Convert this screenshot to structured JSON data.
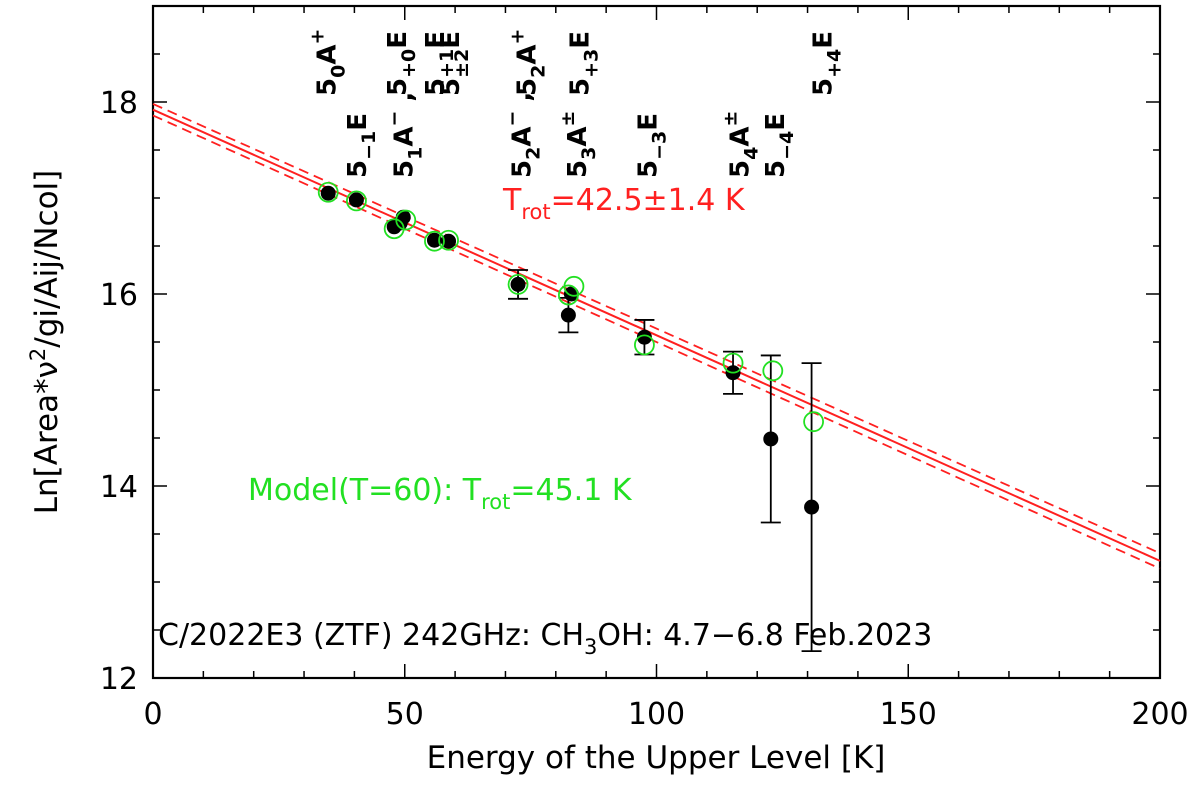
{
  "chart_data": {
    "type": "scatter",
    "title": "C/2022E3 (ZTF) 242GHz: CH3OH: 4.7-6.8 Feb.2023",
    "title_parts": {
      "pre": "C/2022E3 (ZTF) 242GHz: CH",
      "sub": "3",
      "post": "OH: 4.7−6.8 Feb.2023"
    },
    "xlabel": "Energy of the Upper Level [K]",
    "ylabel": "Ln[Area*ν²/gi/Aij/Ncol]",
    "ylabel_parts": {
      "pre": "Ln[Area*ν",
      "sup": "2",
      "post": "/gi/Aij/Ncol]"
    },
    "xlim": [
      0,
      200
    ],
    "ylim": [
      12,
      19
    ],
    "x_ticks": [
      0,
      50,
      100,
      150,
      200
    ],
    "x_tick_labels": [
      "0",
      "50",
      "100",
      "150",
      "200"
    ],
    "y_ticks": [
      12,
      14,
      16,
      18
    ],
    "y_tick_labels": [
      "12",
      "14",
      "16",
      "18"
    ],
    "grid": false,
    "observed": {
      "name": "Observed",
      "color": "#000000",
      "points": [
        {
          "x": 34.8,
          "y": 17.05,
          "err": 0
        },
        {
          "x": 40.4,
          "y": 16.98,
          "err": 0
        },
        {
          "x": 47.9,
          "y": 16.7,
          "err": 0
        },
        {
          "x": 49.1,
          "y": 16.74,
          "err": 0
        },
        {
          "x": 49.7,
          "y": 16.8,
          "err": 0
        },
        {
          "x": 55.9,
          "y": 16.56,
          "err": 0
        },
        {
          "x": 58.7,
          "y": 16.55,
          "err": 0
        },
        {
          "x": 72.5,
          "y": 16.1,
          "err": 0.15
        },
        {
          "x": 82.5,
          "y": 15.78,
          "err": 0.18
        },
        {
          "x": 83.1,
          "y": 16.0,
          "err": 0
        },
        {
          "x": 97.6,
          "y": 15.55,
          "err": 0.18
        },
        {
          "x": 115.2,
          "y": 15.18,
          "err": 0.22
        },
        {
          "x": 122.7,
          "y": 14.49,
          "err": 0.87
        },
        {
          "x": 130.8,
          "y": 13.78,
          "err": 1.5
        }
      ]
    },
    "model": {
      "name": "Model(T=60)",
      "color": "#22e022",
      "points": [
        {
          "x": 34.8,
          "y": 17.06
        },
        {
          "x": 40.4,
          "y": 16.97
        },
        {
          "x": 47.9,
          "y": 16.68
        },
        {
          "x": 50.2,
          "y": 16.77
        },
        {
          "x": 55.9,
          "y": 16.55
        },
        {
          "x": 58.7,
          "y": 16.56
        },
        {
          "x": 72.5,
          "y": 16.1
        },
        {
          "x": 82.5,
          "y": 15.99
        },
        {
          "x": 83.6,
          "y": 16.08
        },
        {
          "x": 97.6,
          "y": 15.47
        },
        {
          "x": 115.2,
          "y": 15.28
        },
        {
          "x": 123.1,
          "y": 15.2
        },
        {
          "x": 131.2,
          "y": 14.67
        }
      ]
    },
    "fit": {
      "color": "#ff2020",
      "line": [
        [
          0,
          17.92
        ],
        [
          200,
          13.22
        ]
      ],
      "upper": [
        [
          0,
          17.98
        ],
        [
          200,
          13.3
        ]
      ],
      "lower": [
        [
          0,
          17.86
        ],
        [
          200,
          13.14
        ]
      ]
    },
    "transition_labels": [
      {
        "x": 34.5,
        "row": "top",
        "parts": [
          [
            "5",
            ""
          ],
          [
            "0",
            "sub"
          ],
          [
            "A",
            ""
          ],
          [
            "+",
            "sup"
          ]
        ]
      },
      {
        "x": 40.5,
        "row": "mid",
        "parts": [
          [
            "5",
            ""
          ],
          [
            "−1",
            "sub"
          ],
          [
            "E",
            ""
          ]
        ]
      },
      {
        "x": 48.5,
        "row": "top",
        "parts": [
          [
            "5",
            ""
          ],
          [
            "+0",
            "sub"
          ],
          [
            "E",
            ""
          ]
        ]
      },
      {
        "x": 49.8,
        "row": "mid",
        "parts": [
          [
            "5",
            ""
          ],
          [
            "1",
            "sub"
          ],
          [
            "A",
            ""
          ],
          [
            "−",
            "sup"
          ],
          [
            " ,",
            ""
          ]
        ]
      },
      {
        "x": 56.0,
        "row": "top",
        "parts": [
          [
            "5",
            ""
          ],
          [
            "+1",
            "sub"
          ],
          [
            "E",
            ""
          ]
        ]
      },
      {
        "x": 59.0,
        "row": "top",
        "parts": [
          [
            "5",
            ""
          ],
          [
            "±2",
            "sub"
          ],
          [
            "E",
            ""
          ]
        ]
      },
      {
        "x": 73.2,
        "row": "mid",
        "parts": [
          [
            "5",
            ""
          ],
          [
            "2",
            "sub"
          ],
          [
            "A",
            ""
          ],
          [
            "−",
            "sup"
          ],
          [
            " ,",
            ""
          ]
        ]
      },
      {
        "x": 74.2,
        "row": "top",
        "parts": [
          [
            "5",
            ""
          ],
          [
            "2",
            "sub"
          ],
          [
            "A",
            ""
          ],
          [
            "+",
            "sup"
          ]
        ]
      },
      {
        "x": 84.2,
        "row": "mid",
        "parts": [
          [
            "5",
            ""
          ],
          [
            "3",
            "sub"
          ],
          [
            "A",
            ""
          ],
          [
            "±",
            "sup"
          ]
        ]
      },
      {
        "x": 84.7,
        "row": "top",
        "parts": [
          [
            "5",
            ""
          ],
          [
            "+3",
            "sub"
          ],
          [
            "E",
            ""
          ]
        ]
      },
      {
        "x": 98.2,
        "row": "mid",
        "parts": [
          [
            "5",
            ""
          ],
          [
            "−3",
            "sub"
          ],
          [
            "E",
            ""
          ]
        ]
      },
      {
        "x": 116.5,
        "row": "mid",
        "parts": [
          [
            "5",
            ""
          ],
          [
            "4",
            "sub"
          ],
          [
            "A",
            ""
          ],
          [
            "±",
            "sup"
          ]
        ]
      },
      {
        "x": 123.5,
        "row": "mid",
        "parts": [
          [
            "5",
            ""
          ],
          [
            "−4",
            "sub"
          ],
          [
            "E",
            ""
          ]
        ]
      },
      {
        "x": 133.0,
        "row": "top",
        "parts": [
          [
            "5",
            ""
          ],
          [
            "+4",
            "sub"
          ],
          [
            "E",
            ""
          ]
        ]
      }
    ],
    "annotations": {
      "fit_result": "Trot=42.5±1.4 K",
      "fit_result_parts": {
        "pre": "T",
        "sub": "rot",
        "post": "=42.5±1.4 K"
      },
      "model_result": "Model(T=60): Trot=45.1 K",
      "model_result_parts": {
        "pre": "Model(T=60): T",
        "sub": "rot",
        "post": "=45.1 K"
      }
    }
  }
}
